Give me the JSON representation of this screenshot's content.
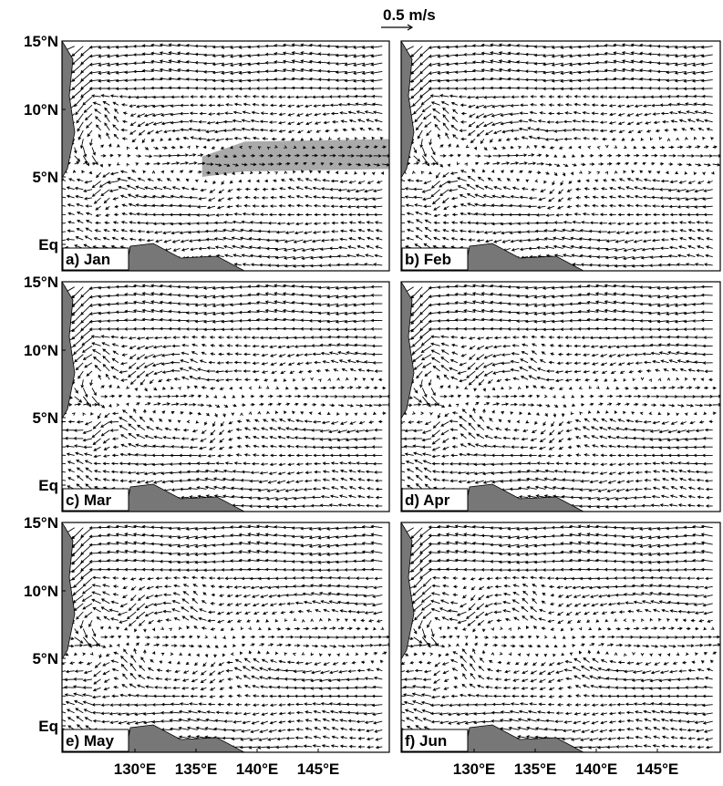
{
  "scale_label": "0.5 m/s",
  "lat_labels": [
    "15°N",
    "10°N",
    "5°N",
    "Eq"
  ],
  "lon_labels": [
    "130°E",
    "135°E",
    "140°E",
    "145°E"
  ],
  "panels": [
    {
      "label": "a) Jan"
    },
    {
      "label": "b) Feb"
    },
    {
      "label": "c) Mar"
    },
    {
      "label": "d) Apr"
    },
    {
      "label": "e) May"
    },
    {
      "label": "f) Jun"
    }
  ]
}
